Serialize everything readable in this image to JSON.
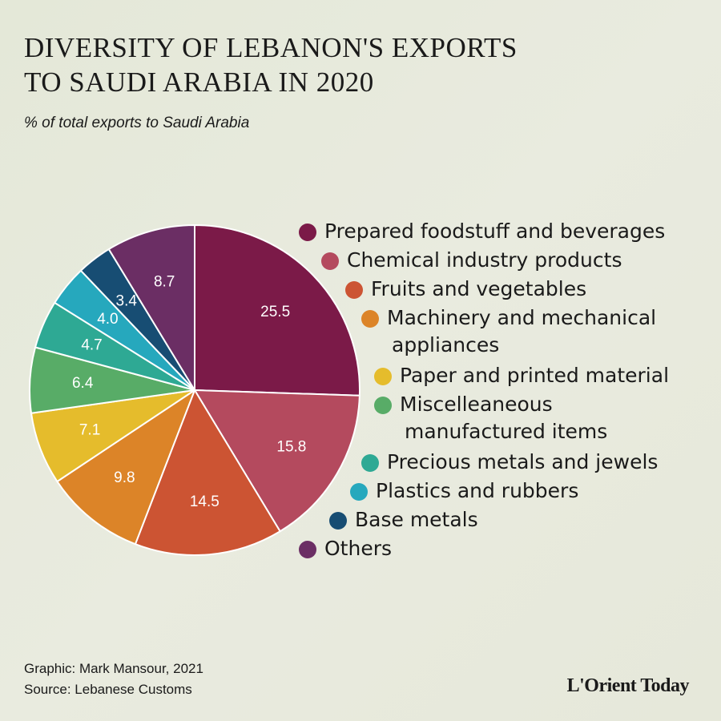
{
  "title_line1": "DIVERSITY OF LEBANON'S EXPORTS",
  "title_line2": "TO SAUDI ARABIA IN 2020",
  "subtitle": "% of total exports to Saudi Arabia",
  "footer": {
    "graphic": "Graphic: Mark Mansour, 2021",
    "source": "Source: Lebanese Customs"
  },
  "logo": "L'Orient Today",
  "colors": {
    "background": "#e6e9da",
    "slice_border": "#ffffff",
    "label_text": "#ffffff"
  },
  "chart_data": {
    "type": "pie",
    "title": "DIVERSITY OF LEBANON'S EXPORTS TO SAUDI ARABIA IN 2020",
    "subtitle": "% of total exports to Saudi Arabia",
    "legend_position": "right",
    "start_angle": "12 o'clock",
    "direction": "clockwise",
    "slices": [
      {
        "name": "Prepared foodstuff and beverages",
        "legend_lines": [
          "Prepared foodstuff and beverages"
        ],
        "value": 25.5,
        "label": "25.5",
        "color": "#7b1a48"
      },
      {
        "name": "Chemical industry products",
        "legend_lines": [
          "Chemical industry products"
        ],
        "value": 15.8,
        "label": "15.8",
        "color": "#b44a5e"
      },
      {
        "name": "Fruits and vegetables",
        "legend_lines": [
          "Fruits and vegetables"
        ],
        "value": 14.5,
        "label": "14.5",
        "color": "#cc5433"
      },
      {
        "name": "Machinery and mechanical appliances",
        "legend_lines": [
          "Machinery and mechanical",
          "appliances"
        ],
        "value": 9.8,
        "label": "9.8",
        "color": "#dc8428"
      },
      {
        "name": "Paper and printed material",
        "legend_lines": [
          "Paper and printed material"
        ],
        "value": 7.1,
        "label": "7.1",
        "color": "#e5bc2c"
      },
      {
        "name": "Miscelleaneous manufactured items",
        "legend_lines": [
          "Miscelleaneous",
          "manufactured items"
        ],
        "value": 6.4,
        "label": "6.4",
        "color": "#58ac67"
      },
      {
        "name": "Precious metals and jewels",
        "legend_lines": [
          "Precious metals and jewels"
        ],
        "value": 4.7,
        "label": "4.7",
        "color": "#2ea994"
      },
      {
        "name": "Plastics and rubbers",
        "legend_lines": [
          "Plastics and rubbers"
        ],
        "value": 4.0,
        "label": "4.0",
        "color": "#26a8bd"
      },
      {
        "name": "Base metals",
        "legend_lines": [
          "Base metals"
        ],
        "value": 3.4,
        "label": "3.4",
        "color": "#174d73"
      },
      {
        "name": "Others",
        "legend_lines": [
          "Others"
        ],
        "value": 8.7,
        "label": "8.7",
        "color": "#6b2e64"
      }
    ]
  }
}
